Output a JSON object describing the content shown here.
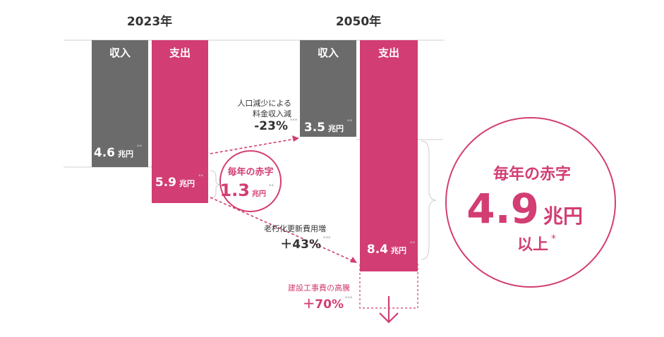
{
  "chart_data": {
    "type": "bar",
    "unit": "兆円",
    "groups": [
      {
        "year": "2023年",
        "bars": [
          {
            "label": "収入",
            "value": 4.6,
            "value_text": "4.6",
            "unit": "兆円",
            "color": "#6b6b6b"
          },
          {
            "label": "支出",
            "value": 5.9,
            "value_text": "5.9",
            "unit": "兆円",
            "color": "#d23d73"
          }
        ],
        "deficit": {
          "head": "毎年の赤字",
          "value": 1.3,
          "value_text": "1.3",
          "unit": "兆円"
        }
      },
      {
        "year": "2050年",
        "bars": [
          {
            "label": "収入",
            "value": 3.5,
            "value_text": "3.5",
            "unit": "兆円",
            "color": "#6b6b6b"
          },
          {
            "label": "支出",
            "value": 8.4,
            "value_text": "8.4",
            "unit": "兆円",
            "color": "#d23d73",
            "extra_dashed_label": "建設工事費の高騰"
          }
        ],
        "deficit": {
          "head": "毎年の赤字",
          "value": 4.9,
          "value_text": "4.9",
          "unit": "兆円",
          "suffix": "以上",
          "mark": "*"
        }
      }
    ],
    "annotations": [
      {
        "lines": [
          "人口減少による",
          "料金収入減"
        ],
        "change": "-23%"
      },
      {
        "lines": [
          "老朽化更新費用増"
        ],
        "change": "＋43%"
      },
      {
        "lines": [
          "建設工事費の高騰"
        ],
        "change": "＋70%"
      }
    ],
    "footnote_marks": {
      "value": "**",
      "pct": "***"
    },
    "colors": {
      "income": "#6b6b6b",
      "expense": "#d23d73",
      "accent": "#d23d73",
      "axis": "#cccccc"
    }
  }
}
